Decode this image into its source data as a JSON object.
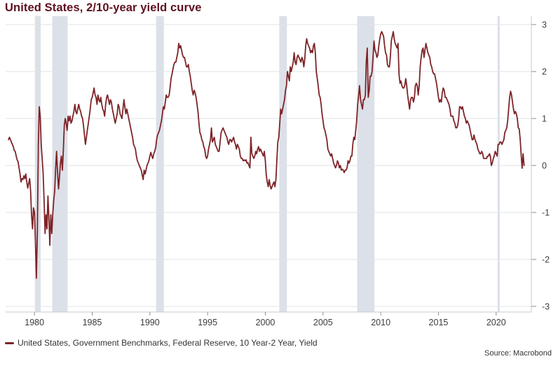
{
  "header": {
    "title": "United States, 2/10-year yield curve"
  },
  "legend": {
    "label": "United States, Government Benchmarks, Federal Reserve, 10 Year-2 Year, Yield"
  },
  "footer": {
    "source": "Source: Macrobond"
  },
  "colors": {
    "line": "#7e2428",
    "title": "#5e1020",
    "band": "#dce0e8",
    "grid": "#e2e3e5",
    "axis": "#c6cbd2",
    "tick": "#8b9199",
    "label": "#3c3c3c"
  },
  "chart_data": {
    "type": "line",
    "title": "United States, 2/10-year yield curve",
    "xlabel": "",
    "ylabel": "",
    "grid": "horizontal",
    "legend_position": "bottom-left",
    "y_axis_side": "right",
    "xlim": [
      1977.5,
      2023.05
    ],
    "ylim": [
      -3.12,
      3.18
    ],
    "x_ticks": [
      1980,
      1985,
      1990,
      1995,
      2000,
      2005,
      2010,
      2015,
      2020
    ],
    "y_ticks": [
      3,
      2,
      1,
      0,
      -1,
      -2,
      -3
    ],
    "recession_bands": [
      [
        1980.04,
        1980.54
      ],
      [
        1981.54,
        1982.87
      ],
      [
        1990.54,
        1991.21
      ],
      [
        2001.21,
        2001.87
      ],
      [
        2007.96,
        2009.46
      ],
      [
        2020.12,
        2020.31
      ]
    ],
    "series": [
      {
        "name": "United States, Government Benchmarks, Federal Reserve, 10 Year-2 Year, Yield",
        "color": "#7e2428",
        "start_year": 1977.75,
        "step_years": 0.0833333,
        "values": [
          0.55,
          0.6,
          0.55,
          0.5,
          0.45,
          0.4,
          0.32,
          0.3,
          0.2,
          0.12,
          0.08,
          -0.05,
          -0.18,
          -0.35,
          -0.28,
          -0.3,
          -0.22,
          -0.28,
          -0.18,
          -0.35,
          -0.48,
          -0.38,
          -0.28,
          -0.55,
          -1.05,
          -1.35,
          -0.9,
          -1.0,
          -1.6,
          -2.4,
          -1.4,
          0.45,
          1.25,
          1.05,
          0.45,
          0.15,
          -0.15,
          -0.75,
          -1.45,
          -1.05,
          -1.35,
          -0.65,
          -1.1,
          -1.7,
          -1.05,
          -1.45,
          -1.05,
          -0.75,
          -0.55,
          -0.05,
          0.3,
          -0.15,
          -0.5,
          -0.25,
          0.05,
          0.2,
          -0.1,
          0.3,
          0.85,
          1.0,
          0.9,
          0.75,
          1.05,
          0.95,
          1.05,
          0.9,
          0.95,
          1.05,
          1.15,
          1.3,
          1.15,
          1.1,
          1.2,
          1.3,
          1.2,
          1.15,
          1.05,
          1.0,
          0.85,
          0.65,
          0.45,
          0.6,
          0.75,
          0.9,
          1.05,
          1.2,
          1.4,
          1.45,
          1.55,
          1.65,
          1.5,
          1.45,
          1.3,
          1.5,
          1.4,
          1.35,
          1.45,
          1.3,
          1.2,
          1.15,
          1.05,
          1.3,
          1.45,
          1.5,
          1.4,
          1.3,
          1.4,
          1.35,
          1.2,
          1.1,
          1.0,
          0.9,
          1.0,
          1.1,
          1.3,
          1.25,
          1.1,
          1.05,
          1.0,
          1.2,
          1.4,
          1.25,
          1.1,
          1.2,
          1.1,
          1.0,
          0.9,
          0.8,
          0.7,
          0.6,
          0.45,
          0.4,
          0.35,
          0.2,
          0.1,
          0.05,
          0.0,
          -0.05,
          -0.1,
          -0.2,
          -0.3,
          -0.1,
          -0.18,
          -0.1,
          0.0,
          0.05,
          0.1,
          0.2,
          0.28,
          0.2,
          0.15,
          0.25,
          0.3,
          0.38,
          0.55,
          0.65,
          0.7,
          0.75,
          0.85,
          0.95,
          1.1,
          1.25,
          1.2,
          1.35,
          1.5,
          1.45,
          1.45,
          1.5,
          1.65,
          1.85,
          1.95,
          2.05,
          2.15,
          2.2,
          2.2,
          2.3,
          2.4,
          2.6,
          2.5,
          2.55,
          2.45,
          2.35,
          2.3,
          2.3,
          2.2,
          2.1,
          2.1,
          2.15,
          2.0,
          1.9,
          1.75,
          1.6,
          1.5,
          1.6,
          1.55,
          1.45,
          1.3,
          1.15,
          0.9,
          0.7,
          0.65,
          0.55,
          0.5,
          0.4,
          0.35,
          0.2,
          0.15,
          0.2,
          0.35,
          0.45,
          0.55,
          0.8,
          0.5,
          0.55,
          0.6,
          0.45,
          0.4,
          0.35,
          0.3,
          0.3,
          0.5,
          0.7,
          0.75,
          0.8,
          0.75,
          0.7,
          0.65,
          0.6,
          0.5,
          0.45,
          0.55,
          0.55,
          0.5,
          0.55,
          0.6,
          0.5,
          0.45,
          0.35,
          0.45,
          0.4,
          0.35,
          0.2,
          0.15,
          0.15,
          0.1,
          0.12,
          0.1,
          0.12,
          0.05,
          0.06,
          0.0,
          -0.05,
          0.6,
          0.25,
          0.2,
          0.15,
          0.2,
          0.3,
          0.25,
          0.35,
          0.4,
          0.3,
          0.35,
          0.3,
          0.25,
          0.2,
          0.3,
          0.1,
          -0.2,
          -0.35,
          -0.45,
          -0.3,
          -0.42,
          -0.5,
          -0.45,
          -0.4,
          -0.35,
          -0.45,
          -0.3,
          0.1,
          0.5,
          0.6,
          0.9,
          1.2,
          1.1,
          1.2,
          1.3,
          1.4,
          1.6,
          1.7,
          2.0,
          1.9,
          1.8,
          2.1,
          2.0,
          2.1,
          2.2,
          2.4,
          2.2,
          2.15,
          2.3,
          2.35,
          2.3,
          2.25,
          2.2,
          2.3,
          2.25,
          2.1,
          2.25,
          2.55,
          2.7,
          2.6,
          2.55,
          2.5,
          2.4,
          2.45,
          2.4,
          2.55,
          2.6,
          2.4,
          2.0,
          1.85,
          1.7,
          1.5,
          1.45,
          1.3,
          1.1,
          0.95,
          0.8,
          0.75,
          0.65,
          0.55,
          0.35,
          0.3,
          0.25,
          0.2,
          0.25,
          0.15,
          0.05,
          0.0,
          -0.05,
          0.0,
          0.1,
          0.05,
          -0.05,
          0.0,
          -0.1,
          -0.08,
          -0.1,
          -0.15,
          -0.1,
          -0.1,
          -0.05,
          0.1,
          0.05,
          0.1,
          0.2,
          0.2,
          0.45,
          0.6,
          0.55,
          0.75,
          0.95,
          1.3,
          1.5,
          1.7,
          1.4,
          1.3,
          1.2,
          1.4,
          1.4,
          1.5,
          2.2,
          2.5,
          1.45,
          1.6,
          1.9,
          1.9,
          2.0,
          2.3,
          2.65,
          2.45,
          2.4,
          2.3,
          2.35,
          2.55,
          2.7,
          2.8,
          2.85,
          2.8,
          2.75,
          2.55,
          2.4,
          2.35,
          2.15,
          2.1,
          2.1,
          2.3,
          2.65,
          2.75,
          2.85,
          2.7,
          2.6,
          2.55,
          2.5,
          2.6,
          1.95,
          1.75,
          1.8,
          1.7,
          1.65,
          1.65,
          1.7,
          1.85,
          1.7,
          1.5,
          1.35,
          1.2,
          1.4,
          1.45,
          1.45,
          1.35,
          1.45,
          1.7,
          1.75,
          1.7,
          1.5,
          1.7,
          2.1,
          2.3,
          2.45,
          2.5,
          2.3,
          2.45,
          2.6,
          2.5,
          2.4,
          2.35,
          2.3,
          2.15,
          2.1,
          2.0,
          1.95,
          1.95,
          1.85,
          1.75,
          1.6,
          1.45,
          1.35,
          1.4,
          1.35,
          1.55,
          1.65,
          1.6,
          1.45,
          1.45,
          1.4,
          1.35,
          1.3,
          1.2,
          1.05,
          1.05,
          1.05,
          0.95,
          0.9,
          0.8,
          0.8,
          0.85,
          1.0,
          1.25,
          1.25,
          1.2,
          1.25,
          1.15,
          1.05,
          1.0,
          0.9,
          0.95,
          0.9,
          0.85,
          0.75,
          0.65,
          0.55,
          0.55,
          0.65,
          0.55,
          0.5,
          0.45,
          0.35,
          0.3,
          0.25,
          0.25,
          0.3,
          0.25,
          0.15,
          0.15,
          0.15,
          0.15,
          0.2,
          0.2,
          0.25,
          0.2,
          0.0,
          0.05,
          0.15,
          0.2,
          0.3,
          0.25,
          0.2,
          0.45,
          0.45,
          0.5,
          0.5,
          0.45,
          0.5,
          0.55,
          0.7,
          0.75,
          0.8,
          0.95,
          1.2,
          1.45,
          1.58,
          1.5,
          1.35,
          1.2,
          1.1,
          1.15,
          1.1,
          1.0,
          0.8,
          0.78,
          0.55,
          0.22,
          -0.06,
          0.25,
          0.0
        ]
      }
    ]
  }
}
